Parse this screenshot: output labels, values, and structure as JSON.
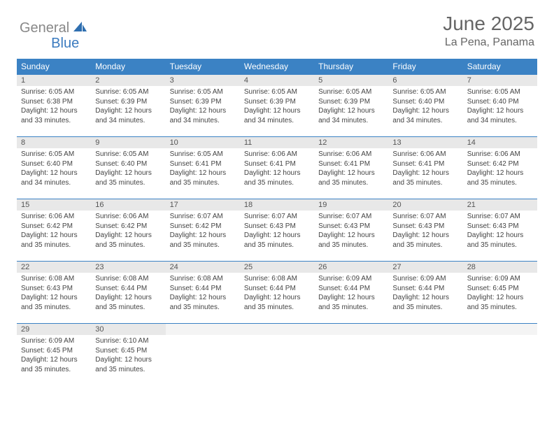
{
  "logo": {
    "text1": "General",
    "text2": "Blue"
  },
  "title": "June 2025",
  "location": "La Pena, Panama",
  "colors": {
    "header_bg": "#3b82c4",
    "header_text": "#ffffff",
    "daynum_bg": "#e8e8e8",
    "text": "#444444",
    "logo_gray": "#888888",
    "logo_blue": "#3b7bbf"
  },
  "dayHeaders": [
    "Sunday",
    "Monday",
    "Tuesday",
    "Wednesday",
    "Thursday",
    "Friday",
    "Saturday"
  ],
  "weeks": [
    [
      {
        "n": "1",
        "sr": "Sunrise: 6:05 AM",
        "ss": "Sunset: 6:38 PM",
        "d1": "Daylight: 12 hours",
        "d2": "and 33 minutes."
      },
      {
        "n": "2",
        "sr": "Sunrise: 6:05 AM",
        "ss": "Sunset: 6:39 PM",
        "d1": "Daylight: 12 hours",
        "d2": "and 34 minutes."
      },
      {
        "n": "3",
        "sr": "Sunrise: 6:05 AM",
        "ss": "Sunset: 6:39 PM",
        "d1": "Daylight: 12 hours",
        "d2": "and 34 minutes."
      },
      {
        "n": "4",
        "sr": "Sunrise: 6:05 AM",
        "ss": "Sunset: 6:39 PM",
        "d1": "Daylight: 12 hours",
        "d2": "and 34 minutes."
      },
      {
        "n": "5",
        "sr": "Sunrise: 6:05 AM",
        "ss": "Sunset: 6:39 PM",
        "d1": "Daylight: 12 hours",
        "d2": "and 34 minutes."
      },
      {
        "n": "6",
        "sr": "Sunrise: 6:05 AM",
        "ss": "Sunset: 6:40 PM",
        "d1": "Daylight: 12 hours",
        "d2": "and 34 minutes."
      },
      {
        "n": "7",
        "sr": "Sunrise: 6:05 AM",
        "ss": "Sunset: 6:40 PM",
        "d1": "Daylight: 12 hours",
        "d2": "and 34 minutes."
      }
    ],
    [
      {
        "n": "8",
        "sr": "Sunrise: 6:05 AM",
        "ss": "Sunset: 6:40 PM",
        "d1": "Daylight: 12 hours",
        "d2": "and 34 minutes."
      },
      {
        "n": "9",
        "sr": "Sunrise: 6:05 AM",
        "ss": "Sunset: 6:40 PM",
        "d1": "Daylight: 12 hours",
        "d2": "and 35 minutes."
      },
      {
        "n": "10",
        "sr": "Sunrise: 6:05 AM",
        "ss": "Sunset: 6:41 PM",
        "d1": "Daylight: 12 hours",
        "d2": "and 35 minutes."
      },
      {
        "n": "11",
        "sr": "Sunrise: 6:06 AM",
        "ss": "Sunset: 6:41 PM",
        "d1": "Daylight: 12 hours",
        "d2": "and 35 minutes."
      },
      {
        "n": "12",
        "sr": "Sunrise: 6:06 AM",
        "ss": "Sunset: 6:41 PM",
        "d1": "Daylight: 12 hours",
        "d2": "and 35 minutes."
      },
      {
        "n": "13",
        "sr": "Sunrise: 6:06 AM",
        "ss": "Sunset: 6:41 PM",
        "d1": "Daylight: 12 hours",
        "d2": "and 35 minutes."
      },
      {
        "n": "14",
        "sr": "Sunrise: 6:06 AM",
        "ss": "Sunset: 6:42 PM",
        "d1": "Daylight: 12 hours",
        "d2": "and 35 minutes."
      }
    ],
    [
      {
        "n": "15",
        "sr": "Sunrise: 6:06 AM",
        "ss": "Sunset: 6:42 PM",
        "d1": "Daylight: 12 hours",
        "d2": "and 35 minutes."
      },
      {
        "n": "16",
        "sr": "Sunrise: 6:06 AM",
        "ss": "Sunset: 6:42 PM",
        "d1": "Daylight: 12 hours",
        "d2": "and 35 minutes."
      },
      {
        "n": "17",
        "sr": "Sunrise: 6:07 AM",
        "ss": "Sunset: 6:42 PM",
        "d1": "Daylight: 12 hours",
        "d2": "and 35 minutes."
      },
      {
        "n": "18",
        "sr": "Sunrise: 6:07 AM",
        "ss": "Sunset: 6:43 PM",
        "d1": "Daylight: 12 hours",
        "d2": "and 35 minutes."
      },
      {
        "n": "19",
        "sr": "Sunrise: 6:07 AM",
        "ss": "Sunset: 6:43 PM",
        "d1": "Daylight: 12 hours",
        "d2": "and 35 minutes."
      },
      {
        "n": "20",
        "sr": "Sunrise: 6:07 AM",
        "ss": "Sunset: 6:43 PM",
        "d1": "Daylight: 12 hours",
        "d2": "and 35 minutes."
      },
      {
        "n": "21",
        "sr": "Sunrise: 6:07 AM",
        "ss": "Sunset: 6:43 PM",
        "d1": "Daylight: 12 hours",
        "d2": "and 35 minutes."
      }
    ],
    [
      {
        "n": "22",
        "sr": "Sunrise: 6:08 AM",
        "ss": "Sunset: 6:43 PM",
        "d1": "Daylight: 12 hours",
        "d2": "and 35 minutes."
      },
      {
        "n": "23",
        "sr": "Sunrise: 6:08 AM",
        "ss": "Sunset: 6:44 PM",
        "d1": "Daylight: 12 hours",
        "d2": "and 35 minutes."
      },
      {
        "n": "24",
        "sr": "Sunrise: 6:08 AM",
        "ss": "Sunset: 6:44 PM",
        "d1": "Daylight: 12 hours",
        "d2": "and 35 minutes."
      },
      {
        "n": "25",
        "sr": "Sunrise: 6:08 AM",
        "ss": "Sunset: 6:44 PM",
        "d1": "Daylight: 12 hours",
        "d2": "and 35 minutes."
      },
      {
        "n": "26",
        "sr": "Sunrise: 6:09 AM",
        "ss": "Sunset: 6:44 PM",
        "d1": "Daylight: 12 hours",
        "d2": "and 35 minutes."
      },
      {
        "n": "27",
        "sr": "Sunrise: 6:09 AM",
        "ss": "Sunset: 6:44 PM",
        "d1": "Daylight: 12 hours",
        "d2": "and 35 minutes."
      },
      {
        "n": "28",
        "sr": "Sunrise: 6:09 AM",
        "ss": "Sunset: 6:45 PM",
        "d1": "Daylight: 12 hours",
        "d2": "and 35 minutes."
      }
    ],
    [
      {
        "n": "29",
        "sr": "Sunrise: 6:09 AM",
        "ss": "Sunset: 6:45 PM",
        "d1": "Daylight: 12 hours",
        "d2": "and 35 minutes."
      },
      {
        "n": "30",
        "sr": "Sunrise: 6:10 AM",
        "ss": "Sunset: 6:45 PM",
        "d1": "Daylight: 12 hours",
        "d2": "and 35 minutes."
      },
      {
        "empty": true
      },
      {
        "empty": true
      },
      {
        "empty": true
      },
      {
        "empty": true
      },
      {
        "empty": true
      }
    ]
  ]
}
